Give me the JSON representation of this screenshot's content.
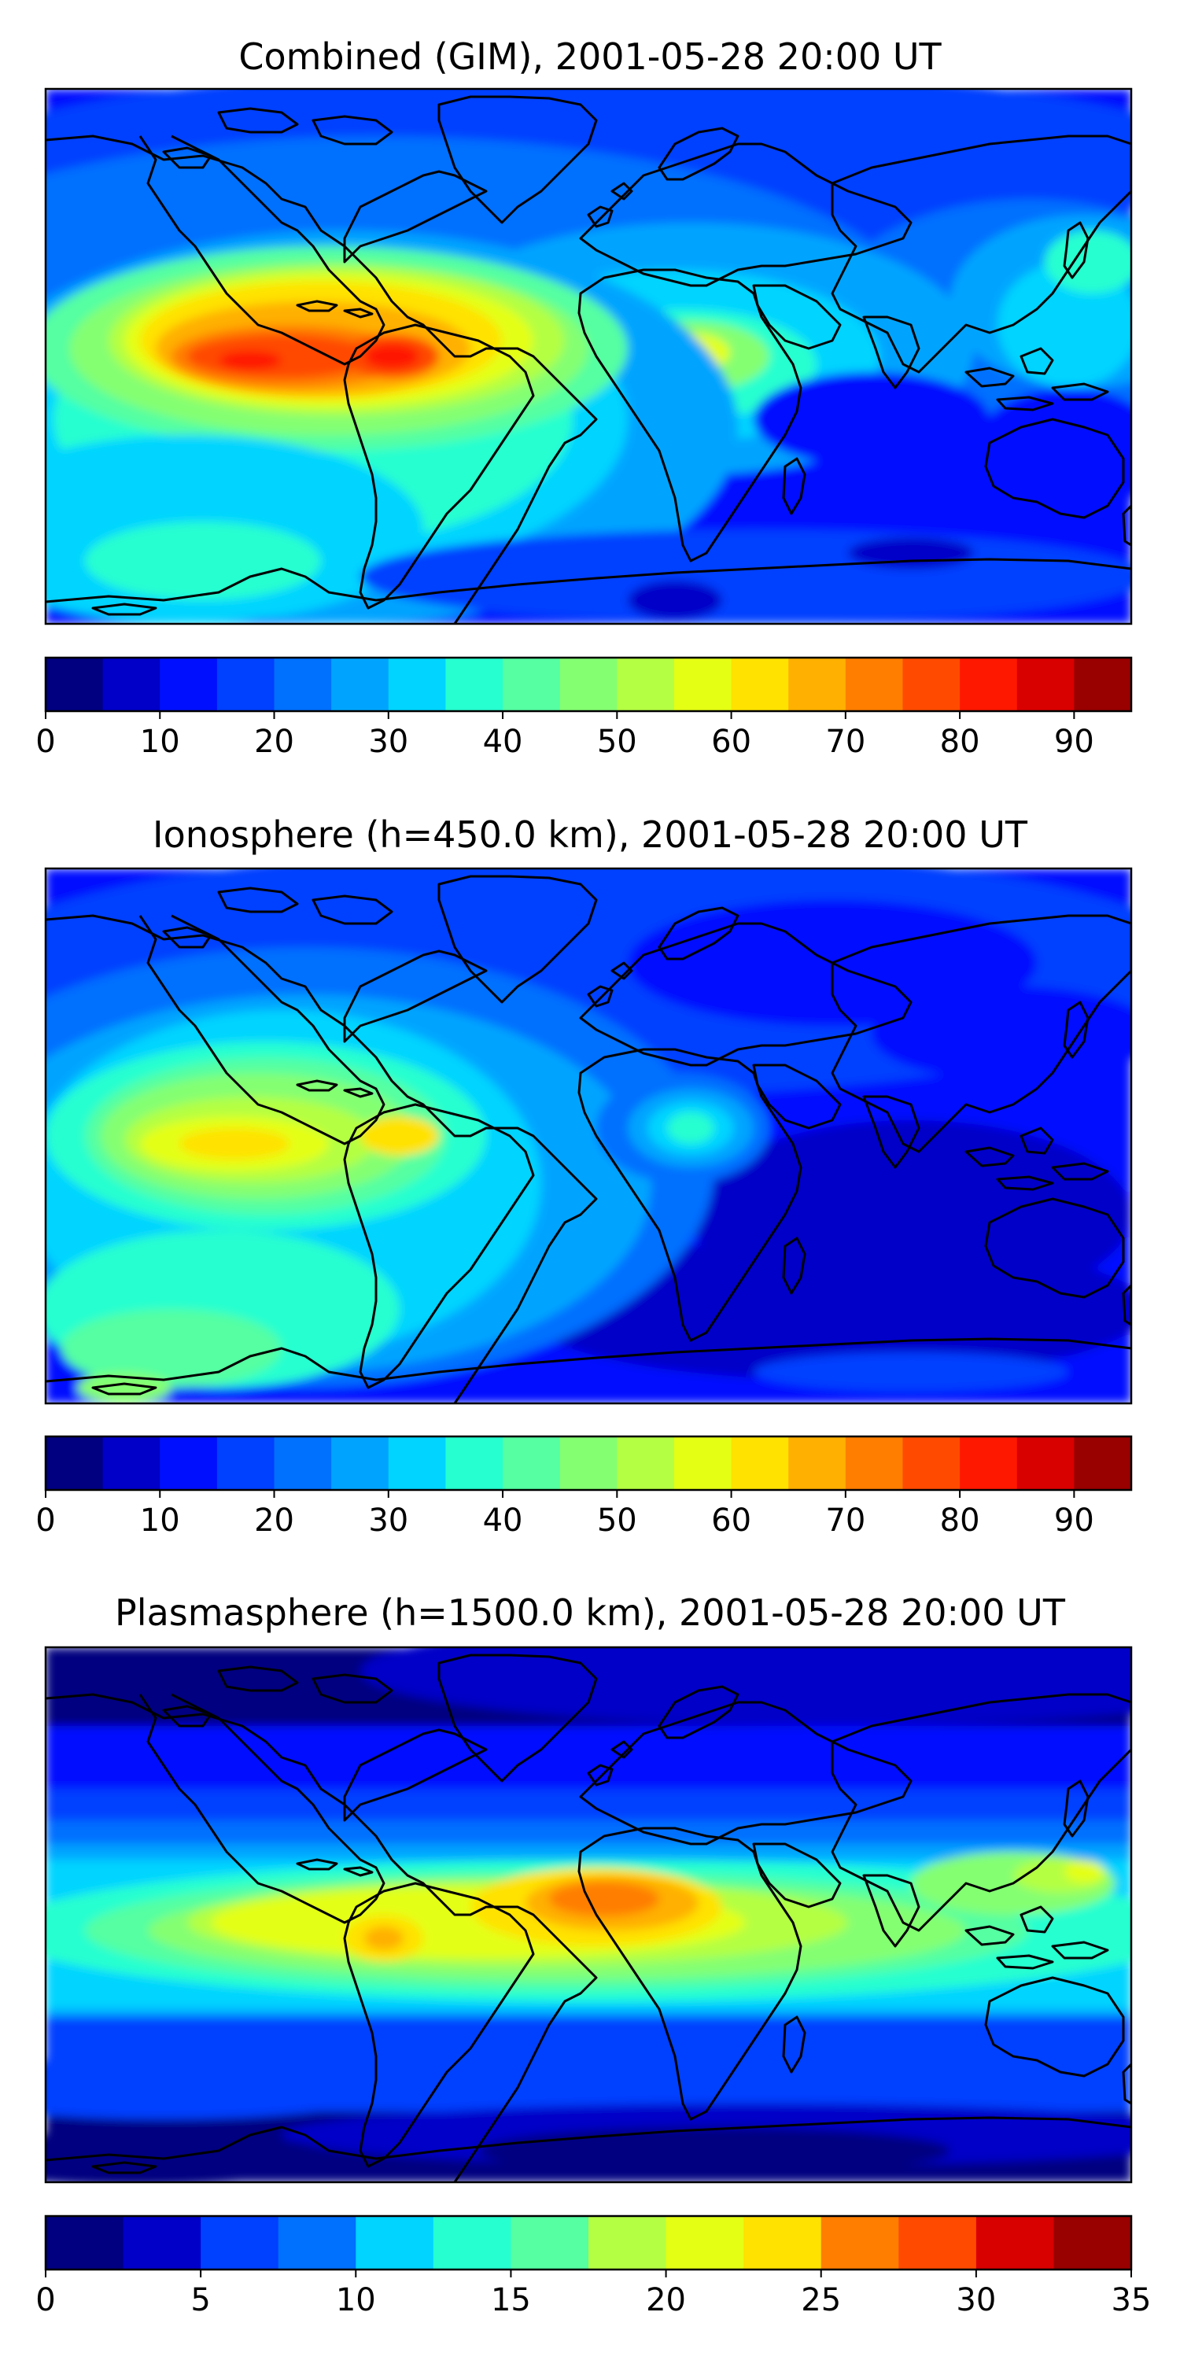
{
  "panels": [
    {
      "title": "Combined (GIM), 2001-05-28 20:00 UT",
      "colorbar": {
        "min": 0,
        "max": 95,
        "step": 5,
        "ticks": [
          "0",
          "10",
          "20",
          "30",
          "40",
          "50",
          "60",
          "70",
          "80",
          "90"
        ]
      }
    },
    {
      "title": "Ionosphere  (h=450.0 km), 2001-05-28 20:00 UT",
      "colorbar": {
        "min": 0,
        "max": 95,
        "step": 5,
        "ticks": [
          "0",
          "10",
          "20",
          "30",
          "40",
          "50",
          "60",
          "70",
          "80",
          "90"
        ]
      }
    },
    {
      "title": "Plasmasphere (h=1500.0 km), 2001-05-28 20:00 UT",
      "colorbar": {
        "min": 0,
        "max": 35,
        "step": 2.5,
        "ticks": [
          "0",
          "5",
          "10",
          "15",
          "20",
          "25",
          "30",
          "35"
        ]
      }
    }
  ],
  "colors": {
    "jet": [
      "#000080",
      "#0000c8",
      "#0010ff",
      "#0040ff",
      "#0070ff",
      "#00a4ff",
      "#00d4ff",
      "#26ffd0",
      "#55ffa2",
      "#84ff72",
      "#b4ff43",
      "#e4ff14",
      "#ffe200",
      "#ffb000",
      "#ff7e00",
      "#ff4a00",
      "#ff1800",
      "#d90000",
      "#990000"
    ],
    "coastline": "#000000"
  }
}
